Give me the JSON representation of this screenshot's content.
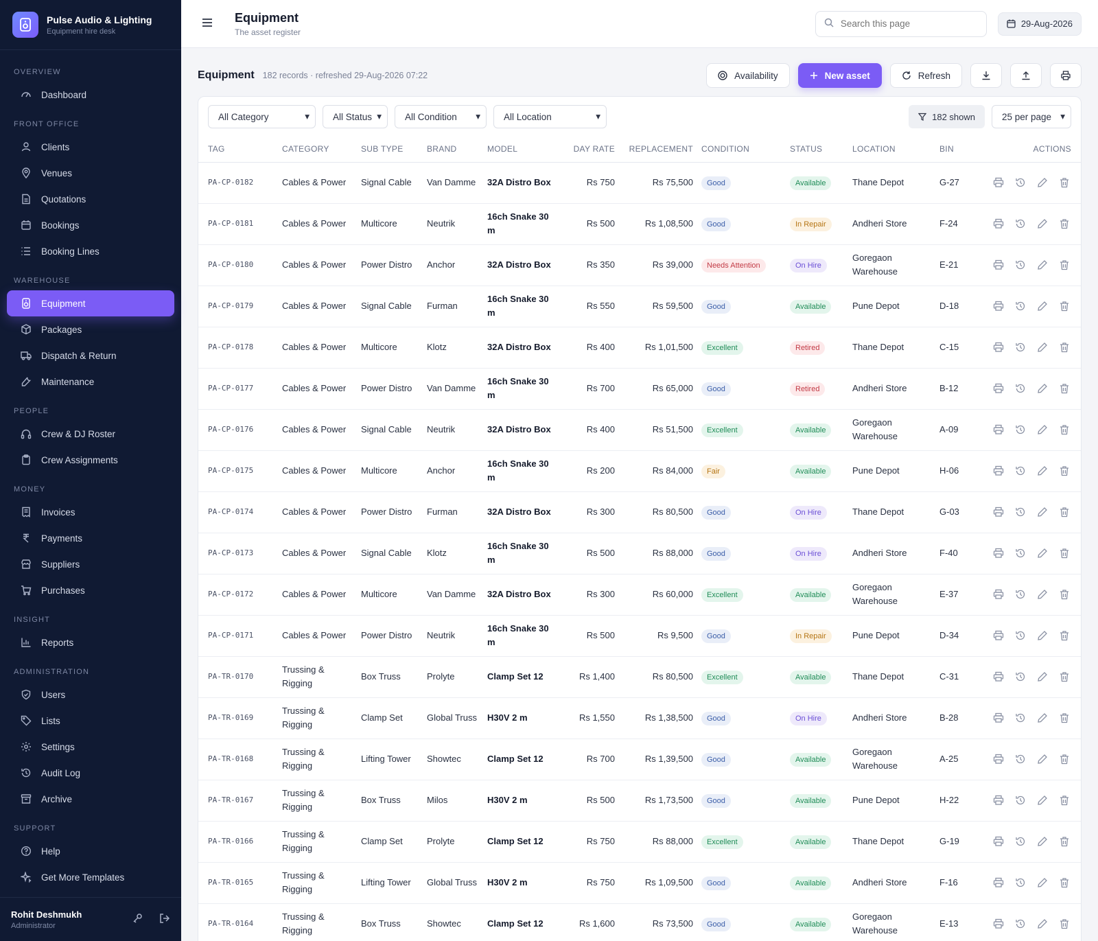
{
  "brand": {
    "name": "Pulse Audio & Lighting",
    "subtitle": "Equipment hire desk"
  },
  "sidebar": {
    "sections": [
      {
        "heading": "OVERVIEW",
        "items": [
          {
            "label": "Dashboard",
            "icon": "gauge-icon"
          }
        ]
      },
      {
        "heading": "FRONT OFFICE",
        "items": [
          {
            "label": "Clients",
            "icon": "users-icon"
          },
          {
            "label": "Venues",
            "icon": "map-pin-icon"
          },
          {
            "label": "Quotations",
            "icon": "document-icon"
          },
          {
            "label": "Bookings",
            "icon": "calendar-icon"
          },
          {
            "label": "Booking Lines",
            "icon": "list-icon"
          }
        ]
      },
      {
        "heading": "WAREHOUSE",
        "items": [
          {
            "label": "Equipment",
            "icon": "speaker-icon",
            "active": true
          },
          {
            "label": "Packages",
            "icon": "box-icon"
          },
          {
            "label": "Dispatch & Return",
            "icon": "truck-icon"
          },
          {
            "label": "Maintenance",
            "icon": "wrench-icon"
          }
        ]
      },
      {
        "heading": "PEOPLE",
        "items": [
          {
            "label": "Crew & DJ Roster",
            "icon": "headphones-icon"
          },
          {
            "label": "Crew Assignments",
            "icon": "clipboard-icon"
          }
        ]
      },
      {
        "heading": "MONEY",
        "items": [
          {
            "label": "Invoices",
            "icon": "invoice-icon"
          },
          {
            "label": "Payments",
            "icon": "rupee-icon"
          },
          {
            "label": "Suppliers",
            "icon": "store-icon"
          },
          {
            "label": "Purchases",
            "icon": "cart-icon"
          }
        ]
      },
      {
        "heading": "INSIGHT",
        "items": [
          {
            "label": "Reports",
            "icon": "bar-chart-icon"
          }
        ]
      },
      {
        "heading": "ADMINISTRATION",
        "items": [
          {
            "label": "Users",
            "icon": "shield-icon"
          },
          {
            "label": "Lists",
            "icon": "tag-icon"
          },
          {
            "label": "Settings",
            "icon": "gear-icon"
          },
          {
            "label": "Audit Log",
            "icon": "history-icon"
          },
          {
            "label": "Archive",
            "icon": "archive-icon"
          }
        ]
      },
      {
        "heading": "SUPPORT",
        "items": [
          {
            "label": "Help",
            "icon": "help-icon"
          },
          {
            "label": "Get More Templates",
            "icon": "sparkle-icon"
          }
        ]
      }
    ]
  },
  "user": {
    "name": "Rohit Deshmukh",
    "role": "Administrator"
  },
  "topbar": {
    "title": "Equipment",
    "subtitle": "The asset register",
    "search_placeholder": "Search this page",
    "date": "29-Aug-2026"
  },
  "page": {
    "title": "Equipment",
    "meta": "182 records · refreshed 29-Aug-2026 07:22",
    "availability_label": "Availability",
    "new_label": "New asset",
    "refresh_label": "Refresh"
  },
  "filters": {
    "category": "All Category",
    "status": "All Status",
    "condition": "All Condition",
    "location": "All Location",
    "shown": "182 shown",
    "per_page": "25 per page"
  },
  "columns": [
    "TAG",
    "CATEGORY",
    "SUB TYPE",
    "BRAND",
    "MODEL",
    "DAY RATE",
    "REPLACEMENT",
    "CONDITION",
    "STATUS",
    "LOCATION",
    "BIN",
    "ACTIONS"
  ],
  "rows": [
    {
      "tag": "PA-CP-0182",
      "category": "Cables & Power",
      "subtype": "Signal Cable",
      "brand": "Van Damme",
      "model": "32A Distro Box",
      "rate": "Rs 750",
      "replacement": "Rs 75,500",
      "condition": "Good",
      "status": "Available",
      "location": "Thane Depot",
      "bin": "G-27"
    },
    {
      "tag": "PA-CP-0181",
      "category": "Cables & Power",
      "subtype": "Multicore",
      "brand": "Neutrik",
      "model": "16ch Snake 30 m",
      "rate": "Rs 500",
      "replacement": "Rs 1,08,500",
      "condition": "Good",
      "status": "In Repair",
      "location": "Andheri Store",
      "bin": "F-24"
    },
    {
      "tag": "PA-CP-0180",
      "category": "Cables & Power",
      "subtype": "Power Distro",
      "brand": "Anchor",
      "model": "32A Distro Box",
      "rate": "Rs 350",
      "replacement": "Rs 39,000",
      "condition": "Needs Attention",
      "status": "On Hire",
      "location": "Goregaon Warehouse",
      "bin": "E-21"
    },
    {
      "tag": "PA-CP-0179",
      "category": "Cables & Power",
      "subtype": "Signal Cable",
      "brand": "Furman",
      "model": "16ch Snake 30 m",
      "rate": "Rs 550",
      "replacement": "Rs 59,500",
      "condition": "Good",
      "status": "Available",
      "location": "Pune Depot",
      "bin": "D-18"
    },
    {
      "tag": "PA-CP-0178",
      "category": "Cables & Power",
      "subtype": "Multicore",
      "brand": "Klotz",
      "model": "32A Distro Box",
      "rate": "Rs 400",
      "replacement": "Rs 1,01,500",
      "condition": "Excellent",
      "status": "Retired",
      "location": "Thane Depot",
      "bin": "C-15"
    },
    {
      "tag": "PA-CP-0177",
      "category": "Cables & Power",
      "subtype": "Power Distro",
      "brand": "Van Damme",
      "model": "16ch Snake 30 m",
      "rate": "Rs 700",
      "replacement": "Rs 65,000",
      "condition": "Good",
      "status": "Retired",
      "location": "Andheri Store",
      "bin": "B-12"
    },
    {
      "tag": "PA-CP-0176",
      "category": "Cables & Power",
      "subtype": "Signal Cable",
      "brand": "Neutrik",
      "model": "32A Distro Box",
      "rate": "Rs 400",
      "replacement": "Rs 51,500",
      "condition": "Excellent",
      "status": "Available",
      "location": "Goregaon Warehouse",
      "bin": "A-09"
    },
    {
      "tag": "PA-CP-0175",
      "category": "Cables & Power",
      "subtype": "Multicore",
      "brand": "Anchor",
      "model": "16ch Snake 30 m",
      "rate": "Rs 200",
      "replacement": "Rs 84,000",
      "condition": "Fair",
      "status": "Available",
      "location": "Pune Depot",
      "bin": "H-06"
    },
    {
      "tag": "PA-CP-0174",
      "category": "Cables & Power",
      "subtype": "Power Distro",
      "brand": "Furman",
      "model": "32A Distro Box",
      "rate": "Rs 300",
      "replacement": "Rs 80,500",
      "condition": "Good",
      "status": "On Hire",
      "location": "Thane Depot",
      "bin": "G-03"
    },
    {
      "tag": "PA-CP-0173",
      "category": "Cables & Power",
      "subtype": "Signal Cable",
      "brand": "Klotz",
      "model": "16ch Snake 30 m",
      "rate": "Rs 500",
      "replacement": "Rs 88,000",
      "condition": "Good",
      "status": "On Hire",
      "location": "Andheri Store",
      "bin": "F-40"
    },
    {
      "tag": "PA-CP-0172",
      "category": "Cables & Power",
      "subtype": "Multicore",
      "brand": "Van Damme",
      "model": "32A Distro Box",
      "rate": "Rs 300",
      "replacement": "Rs 60,000",
      "condition": "Excellent",
      "status": "Available",
      "location": "Goregaon Warehouse",
      "bin": "E-37"
    },
    {
      "tag": "PA-CP-0171",
      "category": "Cables & Power",
      "subtype": "Power Distro",
      "brand": "Neutrik",
      "model": "16ch Snake 30 m",
      "rate": "Rs 500",
      "replacement": "Rs 9,500",
      "condition": "Good",
      "status": "In Repair",
      "location": "Pune Depot",
      "bin": "D-34"
    },
    {
      "tag": "PA-TR-0170",
      "category": "Trussing & Rigging",
      "subtype": "Box Truss",
      "brand": "Prolyte",
      "model": "Clamp Set 12",
      "rate": "Rs 1,400",
      "replacement": "Rs 80,500",
      "condition": "Excellent",
      "status": "Available",
      "location": "Thane Depot",
      "bin": "C-31"
    },
    {
      "tag": "PA-TR-0169",
      "category": "Trussing & Rigging",
      "subtype": "Clamp Set",
      "brand": "Global Truss",
      "model": "H30V 2 m",
      "rate": "Rs 1,550",
      "replacement": "Rs 1,38,500",
      "condition": "Good",
      "status": "On Hire",
      "location": "Andheri Store",
      "bin": "B-28"
    },
    {
      "tag": "PA-TR-0168",
      "category": "Trussing & Rigging",
      "subtype": "Lifting Tower",
      "brand": "Showtec",
      "model": "Clamp Set 12",
      "rate": "Rs 700",
      "replacement": "Rs 1,39,500",
      "condition": "Good",
      "status": "Available",
      "location": "Goregaon Warehouse",
      "bin": "A-25"
    },
    {
      "tag": "PA-TR-0167",
      "category": "Trussing & Rigging",
      "subtype": "Box Truss",
      "brand": "Milos",
      "model": "H30V 2 m",
      "rate": "Rs 500",
      "replacement": "Rs 1,73,500",
      "condition": "Good",
      "status": "Available",
      "location": "Pune Depot",
      "bin": "H-22"
    },
    {
      "tag": "PA-TR-0166",
      "category": "Trussing & Rigging",
      "subtype": "Clamp Set",
      "brand": "Prolyte",
      "model": "Clamp Set 12",
      "rate": "Rs 750",
      "replacement": "Rs 88,000",
      "condition": "Excellent",
      "status": "Available",
      "location": "Thane Depot",
      "bin": "G-19"
    },
    {
      "tag": "PA-TR-0165",
      "category": "Trussing & Rigging",
      "subtype": "Lifting Tower",
      "brand": "Global Truss",
      "model": "H30V 2 m",
      "rate": "Rs 750",
      "replacement": "Rs 1,09,500",
      "condition": "Good",
      "status": "Available",
      "location": "Andheri Store",
      "bin": "F-16"
    },
    {
      "tag": "PA-TR-0164",
      "category": "Trussing & Rigging",
      "subtype": "Box Truss",
      "brand": "Showtec",
      "model": "Clamp Set 12",
      "rate": "Rs 1,600",
      "replacement": "Rs 73,500",
      "condition": "Good",
      "status": "Available",
      "location": "Goregaon Warehouse",
      "bin": "E-13"
    }
  ]
}
